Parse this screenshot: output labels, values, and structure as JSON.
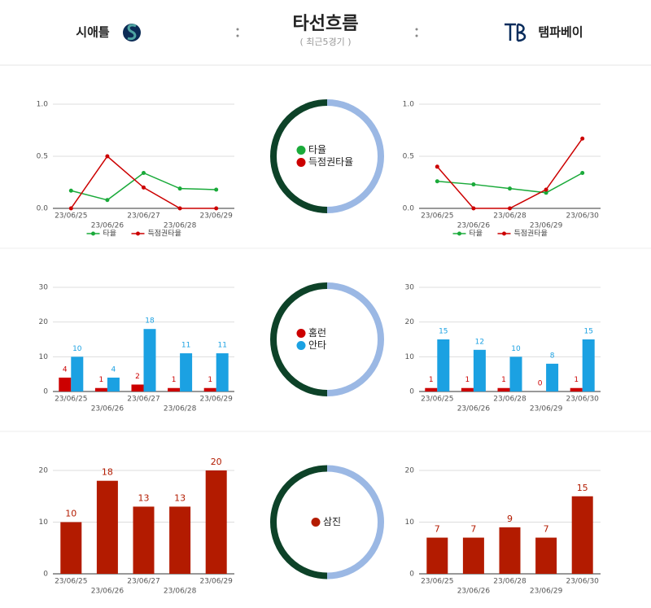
{
  "header": {
    "home_team": "시애틀",
    "title": "타선흐름",
    "subtitle": "( 최근5경기 )",
    "away_team": "탬파베이"
  },
  "chart_data": [
    {
      "type": "line",
      "categories": [
        "23/06/25",
        "23/06/26",
        "23/06/27",
        "23/06/28",
        "23/06/29"
      ],
      "series": [
        {
          "name": "타율",
          "color": "#1aaa3a",
          "values": [
            0.17,
            0.08,
            0.34,
            0.19,
            0.18
          ]
        },
        {
          "name": "득점권타율",
          "color": "#cc0000",
          "values": [
            0,
            0.5,
            0.2,
            0,
            0
          ]
        }
      ],
      "ylim": [
        0,
        1
      ],
      "yticks": [
        {
          "value": 0,
          "label": "0.0"
        },
        {
          "value": 0.5,
          "label": "0.5"
        },
        {
          "value": 1,
          "label": "1.0"
        }
      ],
      "grid": true,
      "legend": "bottom"
    },
    {
      "type": "line",
      "categories": [
        "23/06/25",
        "23/06/26",
        "23/06/28",
        "23/06/29",
        "23/06/30"
      ],
      "series": [
        {
          "name": "타율",
          "color": "#1aaa3a",
          "values": [
            0.26,
            0.23,
            0.19,
            0.15,
            0.34
          ]
        },
        {
          "name": "득점권타율",
          "color": "#cc0000",
          "values": [
            0.4,
            0,
            0,
            0.18,
            0.67
          ]
        }
      ],
      "ylim": [
        0,
        1
      ],
      "yticks": [
        {
          "value": 0,
          "label": "0.0"
        },
        {
          "value": 0.5,
          "label": "0.5"
        },
        {
          "value": 1,
          "label": "1.0"
        }
      ],
      "grid": true,
      "legend": "bottom"
    },
    {
      "type": "bar",
      "categories": [
        "23/06/25",
        "23/06/26",
        "23/06/27",
        "23/06/28",
        "23/06/29"
      ],
      "series": [
        {
          "name": "홈런",
          "color": "#cc0000",
          "values": [
            4,
            1,
            2,
            1,
            1
          ]
        },
        {
          "name": "안타",
          "color": "#1ba1e2",
          "values": [
            10,
            4,
            18,
            11,
            11
          ]
        }
      ],
      "ylim": [
        0,
        30
      ],
      "yticks": [
        0,
        10,
        20,
        30
      ],
      "grid": true
    },
    {
      "type": "bar",
      "categories": [
        "23/06/25",
        "23/06/26",
        "23/06/28",
        "23/06/29",
        "23/06/30"
      ],
      "series": [
        {
          "color": "#cc0000",
          "values": [
            1,
            1,
            1,
            0,
            1
          ]
        },
        {
          "color": "#1ba1e2",
          "values": [
            15,
            12,
            10,
            8,
            15
          ]
        }
      ],
      "ylim": [
        0,
        30
      ],
      "yticks": [
        0,
        10,
        20,
        30
      ],
      "grid": true
    },
    {
      "type": "bar",
      "categories": [
        "23/06/25",
        "23/06/26",
        "23/06/27",
        "23/06/28",
        "23/06/29"
      ],
      "series": [
        {
          "name": "삼진",
          "color": "#b31b00",
          "values": [
            10,
            18,
            13,
            13,
            20
          ]
        }
      ],
      "ylim": [
        0,
        20
      ],
      "yticks": [
        0,
        10,
        20
      ],
      "grid": true
    },
    {
      "type": "bar",
      "categories": [
        "23/06/25",
        "23/06/26",
        "23/06/28",
        "23/06/29",
        "23/06/30"
      ],
      "series": [
        {
          "color": "#b31b00",
          "values": [
            7,
            7,
            9,
            7,
            15
          ]
        }
      ],
      "ylim": [
        0,
        20
      ],
      "yticks": [
        0,
        10,
        20
      ],
      "grid": true
    }
  ]
}
